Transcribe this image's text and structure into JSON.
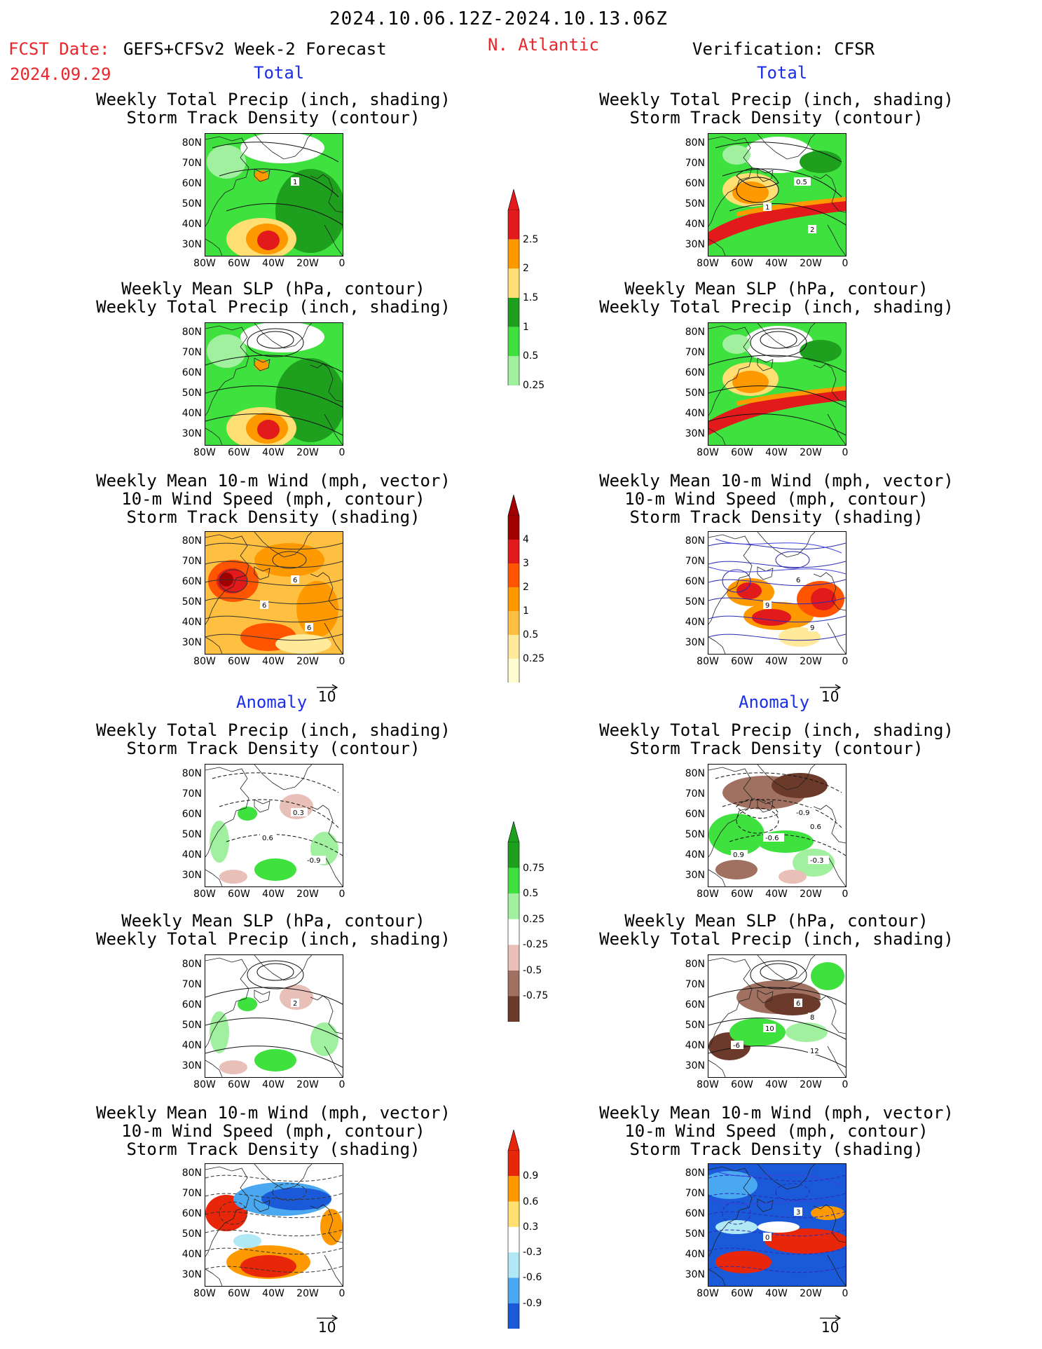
{
  "header": {
    "date_range": "2024.10.06.12Z-2024.10.13.06Z",
    "fcst_label": "FCST Date:",
    "model": "GEFS+CFSv2 Week-2 Forecast",
    "region": "N. Atlantic",
    "fcst_date": "2024.09.29",
    "verification": "Verification: CFSR"
  },
  "sections": {
    "total": "Total",
    "anomaly": "Anomaly"
  },
  "panel_titles": {
    "precip_track": [
      "Weekly Total Precip (inch, shading)",
      "Storm Track Density (contour)"
    ],
    "slp_precip": [
      "Weekly Mean SLP (hPa, contour)",
      "Weekly Total Precip (inch, shading)"
    ],
    "wind_track": [
      "Weekly Mean 10-m Wind (mph, vector)",
      "10-m Wind Speed (mph, contour)",
      "Storm Track Density (shading)"
    ]
  },
  "axes": {
    "lat_ticks": [
      "80N",
      "70N",
      "60N",
      "50N",
      "40N",
      "30N"
    ],
    "lon_ticks": [
      "80W",
      "60W",
      "40W",
      "20W",
      "0"
    ]
  },
  "vector_reference": "10",
  "colorbars": {
    "total_precip": {
      "labels": [
        "2.5",
        "2",
        "1.5",
        "1",
        "0.5",
        "0.25"
      ],
      "colors": [
        "#e31a1c",
        "#ff9900",
        "#ffdf73",
        "#1ea01e",
        "#3ee13e",
        "#a0f0a0"
      ]
    },
    "total_track": {
      "labels": [
        "4",
        "3",
        "2",
        "1",
        "0.5",
        "0.25"
      ],
      "colors": [
        "#a00000",
        "#e31a1c",
        "#ff5500",
        "#ff9900",
        "#ffbf40",
        "#ffe99a",
        "#fffcd0"
      ]
    },
    "anom_precip": {
      "labels": [
        "0.75",
        "0.5",
        "0.25",
        "-0.25",
        "-0.5",
        "-0.75"
      ],
      "colors": [
        "#1ea01e",
        "#3ee13e",
        "#a0f0a0",
        "#ffffff",
        "#e8c0b8",
        "#a07060",
        "#6b3a2a"
      ]
    },
    "anom_track": {
      "labels": [
        "0.9",
        "0.6",
        "0.3",
        "-0.3",
        "-0.6",
        "-0.9"
      ],
      "colors": [
        "#e8260a",
        "#ff9900",
        "#ffe070",
        "#ffffff",
        "#b0e8f5",
        "#4aa8f0",
        "#1a5ad8"
      ]
    }
  },
  "contour_labels": {
    "fc_total_track": [
      "1"
    ],
    "vr_total_track": [
      "0.5",
      "1",
      "2"
    ],
    "fc_total_wind": [
      "6",
      "6",
      "6"
    ],
    "vr_total_wind": [
      "6",
      "9",
      "9"
    ],
    "fc_anom_track": [
      "0.3",
      "0.6",
      "-0.9"
    ],
    "vr_anom_track": [
      "-0.9",
      "-0.6",
      "-0.3",
      "0.9",
      "0.6"
    ],
    "fc_anom_slp": [
      "2"
    ],
    "vr_anom_slp": [
      "6",
      "10",
      "12",
      "-6",
      "8"
    ],
    "vr_anom_wind": [
      "3",
      "0"
    ]
  }
}
